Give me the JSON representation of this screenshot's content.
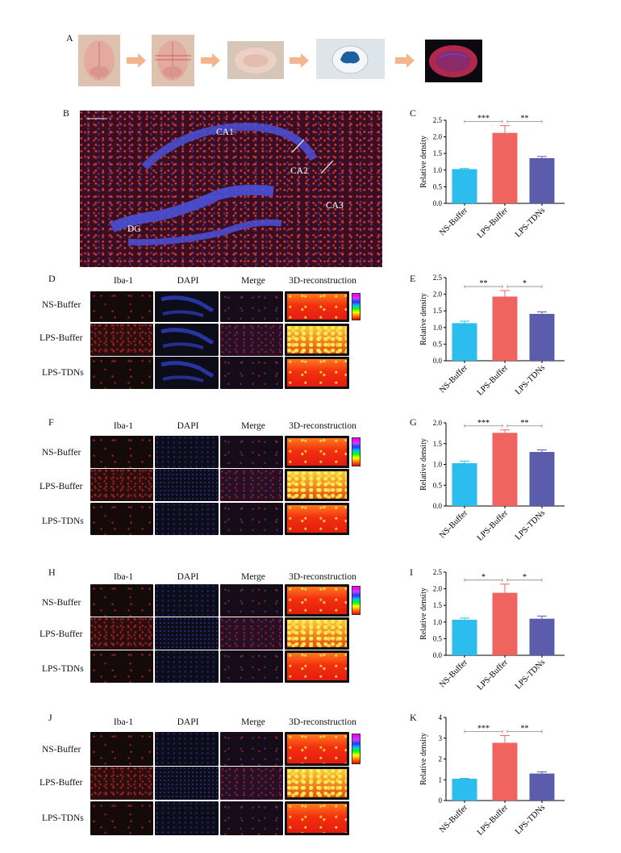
{
  "panel_letters": {
    "A": "A",
    "B": "B",
    "C": "C",
    "D": "D",
    "E": "E",
    "F": "F",
    "G": "G",
    "H": "H",
    "I": "I",
    "J": "J",
    "K": "K"
  },
  "image_b_labels": {
    "ca1": "CA1",
    "ca2": "CA2",
    "ca3": "CA3",
    "dg": "DG"
  },
  "column_headers": [
    "Iba-1",
    "DAPI",
    "Merge",
    "3D-reconstruction"
  ],
  "row_labels": [
    "NS-Buffer",
    "LPS-Buffer",
    "LPS-TDNs"
  ],
  "colors": {
    "ns_buffer": "#2bbdee",
    "lps_buffer": "#f0645f",
    "lps_tdns": "#5b5cab",
    "arrow": "#f5b48c",
    "bracket": "#888888"
  },
  "chart_data": [
    {
      "id": "C",
      "type": "bar",
      "categories": [
        "NS-Buffer",
        "LPS-Buffer",
        "LPS-TDNs"
      ],
      "values": [
        1.03,
        2.12,
        1.36
      ],
      "errors": [
        0.02,
        0.22,
        0.05
      ],
      "ylabel": "Relative density",
      "ylim": [
        0,
        2.5
      ],
      "yticks": [
        "0.0",
        "0.5",
        "1.0",
        "1.5",
        "2.0",
        "2.5"
      ],
      "ytick_values": [
        0,
        0.5,
        1,
        1.5,
        2,
        2.5
      ],
      "significance": [
        {
          "from": 0,
          "to": 1,
          "label": "***"
        },
        {
          "from": 1,
          "to": 2,
          "label": "**"
        }
      ]
    },
    {
      "id": "E",
      "type": "bar",
      "categories": [
        "NS-Buffer",
        "LPS-Buffer",
        "LPS-TDNs"
      ],
      "values": [
        1.13,
        1.93,
        1.41
      ],
      "errors": [
        0.06,
        0.18,
        0.06
      ],
      "ylabel": "Relative density",
      "ylim": [
        0,
        2.5
      ],
      "yticks": [
        "0.0",
        "0.5",
        "1.0",
        "1.5",
        "2.0",
        "2.5"
      ],
      "ytick_values": [
        0,
        0.5,
        1,
        1.5,
        2,
        2.5
      ],
      "significance": [
        {
          "from": 0,
          "to": 1,
          "label": "**"
        },
        {
          "from": 1,
          "to": 2,
          "label": "*"
        }
      ]
    },
    {
      "id": "G",
      "type": "bar",
      "categories": [
        "NS-Buffer",
        "LPS-Buffer",
        "LPS-TDNs"
      ],
      "values": [
        1.03,
        1.76,
        1.3
      ],
      "errors": [
        0.05,
        0.07,
        0.05
      ],
      "ylabel": "Relative density",
      "ylim": [
        0,
        2.0
      ],
      "yticks": [
        "0.0",
        "0.5",
        "1.0",
        "1.5",
        "2.0"
      ],
      "ytick_values": [
        0,
        0.5,
        1,
        1.5,
        2
      ],
      "significance": [
        {
          "from": 0,
          "to": 1,
          "label": "***"
        },
        {
          "from": 1,
          "to": 2,
          "label": "**"
        }
      ]
    },
    {
      "id": "I",
      "type": "bar",
      "categories": [
        "NS-Buffer",
        "LPS-Buffer",
        "LPS-TDNs"
      ],
      "values": [
        1.07,
        1.88,
        1.1
      ],
      "errors": [
        0.05,
        0.26,
        0.08
      ],
      "ylabel": "Relative density",
      "ylim": [
        0,
        2.5
      ],
      "yticks": [
        "0.0",
        "0.5",
        "1.0",
        "1.5",
        "2.0",
        "2.5"
      ],
      "ytick_values": [
        0,
        0.5,
        1,
        1.5,
        2,
        2.5
      ],
      "significance": [
        {
          "from": 0,
          "to": 1,
          "label": "*"
        },
        {
          "from": 1,
          "to": 2,
          "label": "*"
        }
      ]
    },
    {
      "id": "K",
      "type": "bar",
      "categories": [
        "NS-Buffer",
        "LPS-Buffer",
        "LPS-TDNs"
      ],
      "values": [
        1.05,
        2.78,
        1.3
      ],
      "errors": [
        0.02,
        0.35,
        0.08
      ],
      "ylabel": "Relative density",
      "ylim": [
        0,
        4
      ],
      "yticks": [
        "0",
        "1",
        "2",
        "3",
        "4"
      ],
      "ytick_values": [
        0,
        1,
        2,
        3,
        4
      ],
      "significance": [
        {
          "from": 0,
          "to": 1,
          "label": "***"
        },
        {
          "from": 1,
          "to": 2,
          "label": "**"
        }
      ]
    }
  ]
}
